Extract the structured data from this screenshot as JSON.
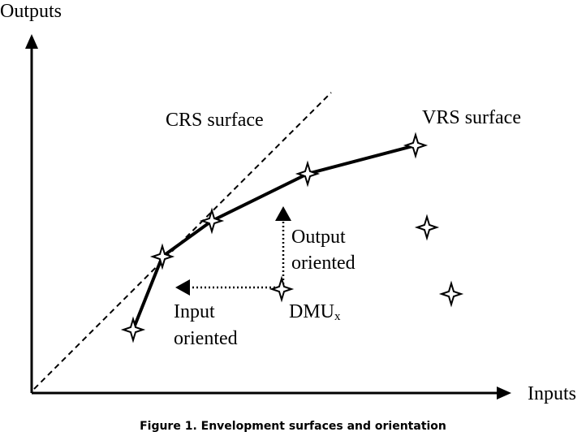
{
  "axes": {
    "y_label": "Outputs",
    "x_label": "Inputs"
  },
  "labels": {
    "crs": "CRS surface",
    "vrs": "VRS surface",
    "output_line1": "Output",
    "output_line2": "oriented",
    "input_line1": "Input",
    "input_line2": "oriented",
    "dmu_main": "DMU",
    "dmu_sub": "x"
  },
  "caption": "Figure 1. Envelopment surfaces and orientation"
}
